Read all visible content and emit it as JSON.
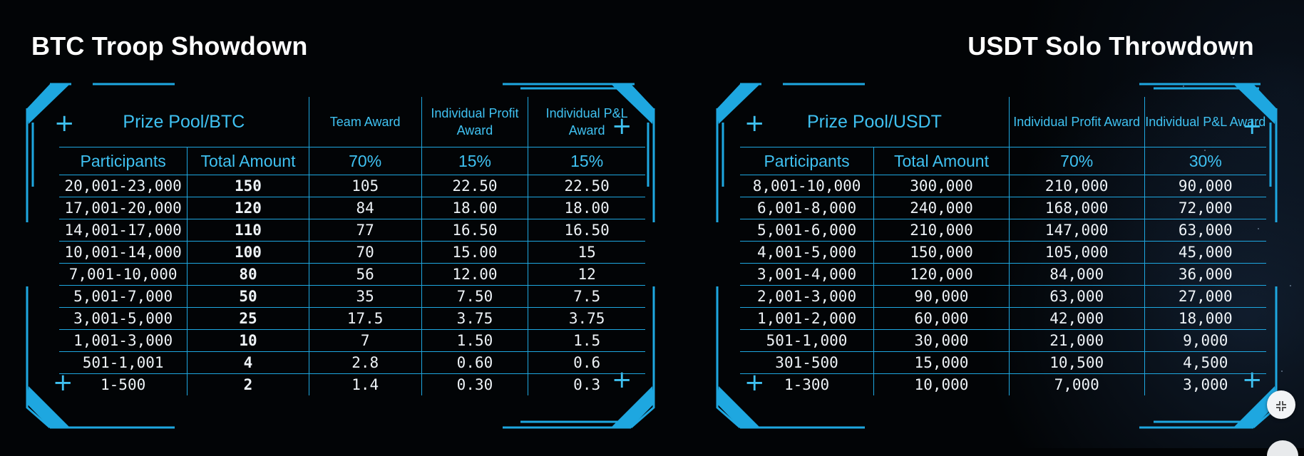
{
  "left": {
    "title": "BTC Troop Showdown",
    "pool_label": "Prize Pool/BTC",
    "col_headers": [
      "Team Award",
      "Individual Profit Award",
      "Individual P&L Award"
    ],
    "sub_headers": [
      "Participants",
      "Total Amount",
      "70%",
      "15%",
      "15%"
    ],
    "rows": [
      [
        "20,001-23,000",
        "150",
        "105",
        "22.50",
        "22.50"
      ],
      [
        "17,001-20,000",
        "120",
        "84",
        "18.00",
        "18.00"
      ],
      [
        "14,001-17,000",
        "110",
        "77",
        "16.50",
        "16.50"
      ],
      [
        "10,001-14,000",
        "100",
        "70",
        "15.00",
        "15"
      ],
      [
        "7,001-10,000",
        "80",
        "56",
        "12.00",
        "12"
      ],
      [
        "5,001-7,000",
        "50",
        "35",
        "7.50",
        "7.5"
      ],
      [
        "3,001-5,000",
        "25",
        "17.5",
        "3.75",
        "3.75"
      ],
      [
        "1,001-3,000",
        "10",
        "7",
        "1.50",
        "1.5"
      ],
      [
        "501-1,001",
        "4",
        "2.8",
        "0.60",
        "0.6"
      ],
      [
        "1-500",
        "2",
        "1.4",
        "0.30",
        "0.3"
      ]
    ]
  },
  "right": {
    "title": "USDT Solo Throwdown",
    "pool_label": "Prize Pool/USDT",
    "col_headers": [
      "Individual Profit Award",
      "Individual P&L Award"
    ],
    "sub_headers": [
      "Participants",
      "Total Amount",
      "70%",
      "30%"
    ],
    "rows": [
      [
        "8,001-10,000",
        "300,000",
        "210,000",
        "90,000"
      ],
      [
        "6,001-8,000",
        "240,000",
        "168,000",
        "72,000"
      ],
      [
        "5,001-6,000",
        "210,000",
        "147,000",
        "63,000"
      ],
      [
        "4,001-5,000",
        "150,000",
        "105,000",
        "45,000"
      ],
      [
        "3,001-4,000",
        "120,000",
        "84,000",
        "36,000"
      ],
      [
        "2,001-3,000",
        "90,000",
        "63,000",
        "27,000"
      ],
      [
        "1,001-2,000",
        "60,000",
        "42,000",
        "18,000"
      ],
      [
        "501-1,000",
        "30,000",
        "21,000",
        "9,000"
      ],
      [
        "301-500",
        "15,000",
        "10,500",
        "4,500"
      ],
      [
        "1-300",
        "10,000",
        "7,000",
        "3,000"
      ]
    ]
  },
  "icons": {
    "plus": "+",
    "collapse_button": "collapse-icon"
  },
  "colors": {
    "accent": "#1ea7e0",
    "accent_text": "#3fc1f1",
    "background": "#020406"
  }
}
